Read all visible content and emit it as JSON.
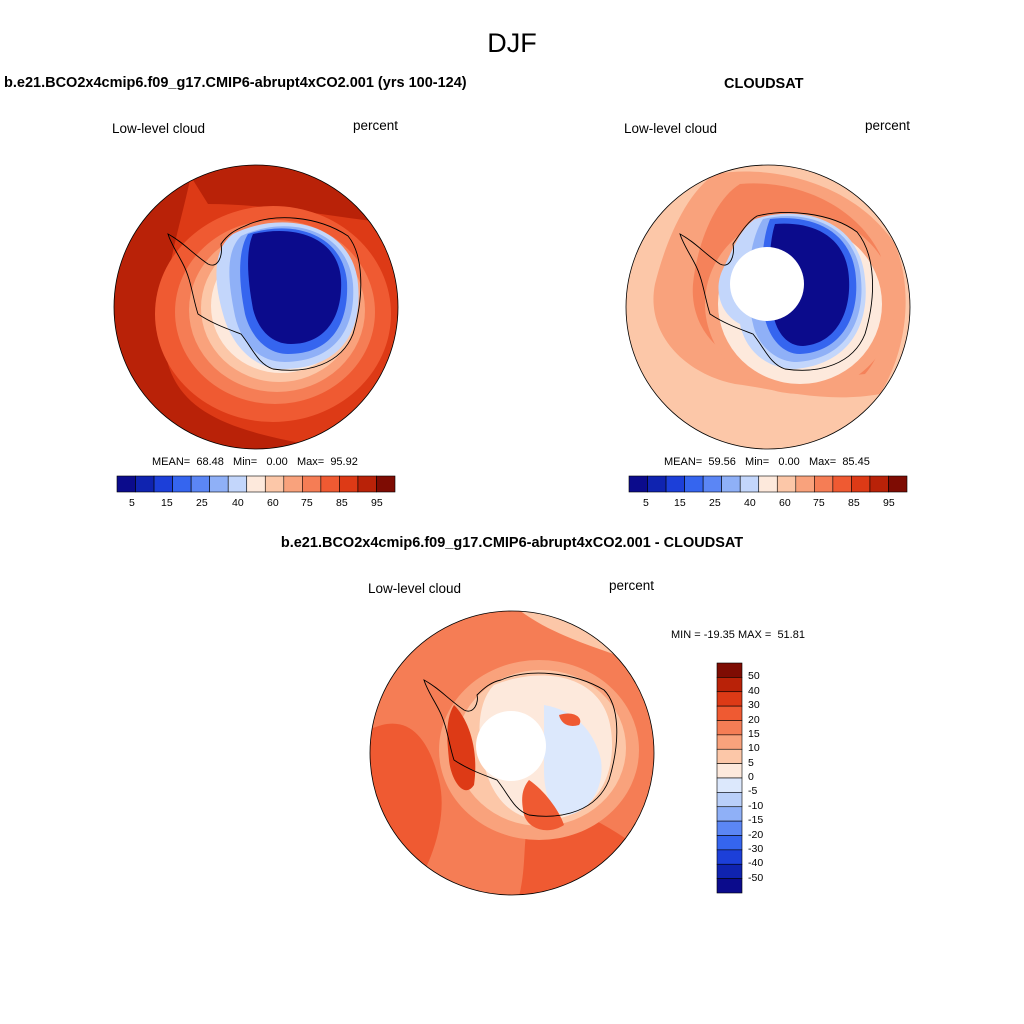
{
  "figure": {
    "title": "DJF",
    "bottom_title": "b.e21.BCO2x4cmip6.f09_g17.CMIP6-abrupt4xCO2.001 - CLOUDSAT"
  },
  "colors": {
    "abs_palette": [
      "#0b0b8c",
      "#0f23b0",
      "#1c3fd9",
      "#3565ef",
      "#5b86f5",
      "#8fb0f7",
      "#c3d6fb",
      "#fde9dc",
      "#fcc7a8",
      "#f9a27c",
      "#f57d55",
      "#ef5a32",
      "#dd3a16",
      "#b92208",
      "#7e0c03"
    ],
    "diff_palette": [
      "#0b0b8c",
      "#0f23b0",
      "#1c3fd9",
      "#3565ef",
      "#5b86f5",
      "#8fb0f7",
      "#b9cff9",
      "#dce8fc",
      "#fde9dc",
      "#fcc7a8",
      "#f9a27c",
      "#f57d55",
      "#ef5a32",
      "#dd3a16",
      "#b92208",
      "#7e0c03"
    ]
  },
  "chart_data": [
    {
      "type": "heatmap",
      "projection": "south-polar-stereographic",
      "title": "b.e21.BCO2x4cmip6.f09_g17.CMIP6-abrupt4xCO2.001 (yrs 100-124)",
      "left_label": "Low-level cloud",
      "right_label": "percent",
      "stats": {
        "mean_label": "MEAN=",
        "mean": "68.48",
        "min_label": "Min=",
        "min": "0.00",
        "max_label": "Max=",
        "max": "95.92"
      },
      "colorbar": {
        "orientation": "horizontal",
        "levels": [
          5,
          10,
          15,
          20,
          25,
          30,
          40,
          50,
          60,
          65,
          75,
          80,
          85,
          90,
          95
        ],
        "tick_labels": [
          "5",
          "15",
          "25",
          "40",
          "60",
          "75",
          "85",
          "95"
        ]
      }
    },
    {
      "type": "heatmap",
      "projection": "south-polar-stereographic",
      "title": "CLOUDSAT",
      "left_label": "Low-level cloud",
      "right_label": "percent",
      "stats": {
        "mean_label": "MEAN=",
        "mean": "59.56",
        "min_label": "Min=",
        "min": "0.00",
        "max_label": "Max=",
        "max": "85.45"
      },
      "colorbar": {
        "orientation": "horizontal",
        "levels": [
          5,
          10,
          15,
          20,
          25,
          30,
          40,
          50,
          60,
          65,
          75,
          80,
          85,
          90,
          95
        ],
        "tick_labels": [
          "5",
          "15",
          "25",
          "40",
          "60",
          "75",
          "85",
          "95"
        ]
      }
    },
    {
      "type": "heatmap",
      "projection": "south-polar-stereographic",
      "title": "b.e21.BCO2x4cmip6.f09_g17.CMIP6-abrupt4xCO2.001 - CLOUDSAT",
      "left_label": "Low-level cloud",
      "right_label": "percent",
      "stats": {
        "min_label": "MIN =",
        "min": "-19.35",
        "max_label": "MAX =",
        "max": "51.81"
      },
      "colorbar": {
        "orientation": "vertical",
        "tick_labels": [
          "50",
          "40",
          "30",
          "20",
          "15",
          "10",
          "5",
          "0",
          "-5",
          "-10",
          "-15",
          "-20",
          "-30",
          "-40",
          "-50"
        ]
      }
    }
  ]
}
